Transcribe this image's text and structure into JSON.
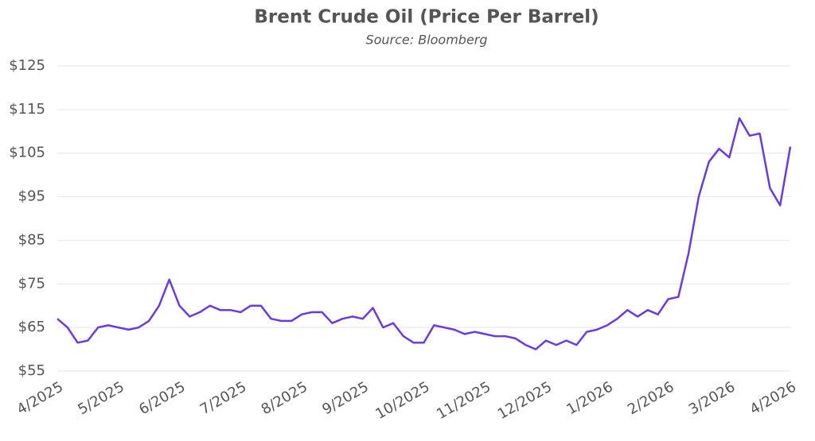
{
  "chart_data": {
    "type": "line",
    "title": "Brent Crude Oil (Price Per Barrel)",
    "subtitle": "Source: Bloomberg",
    "categories": [
      "4/2025",
      null,
      null,
      null,
      null,
      null,
      "5/2025",
      null,
      null,
      null,
      null,
      null,
      "6/2025",
      null,
      null,
      null,
      null,
      null,
      "7/2025",
      null,
      null,
      null,
      null,
      null,
      "8/2025",
      null,
      null,
      null,
      null,
      null,
      "9/2025",
      null,
      null,
      null,
      null,
      null,
      "10/2025",
      null,
      null,
      null,
      null,
      null,
      "11/2025",
      null,
      null,
      null,
      null,
      null,
      "12/2025",
      null,
      null,
      null,
      null,
      null,
      "1/2026",
      null,
      null,
      null,
      null,
      null,
      "2/2026",
      null,
      null,
      null,
      null,
      null,
      "3/2026",
      null,
      null,
      null,
      null,
      null,
      "4/2026"
    ],
    "values": [
      67,
      65,
      61.5,
      62,
      65,
      65.5,
      65,
      64.5,
      65,
      66.5,
      70,
      76,
      70,
      67.5,
      68.5,
      70,
      69,
      69,
      68.5,
      70,
      70,
      67,
      66.5,
      66.5,
      68,
      68.5,
      68.5,
      66,
      67,
      67.5,
      67,
      69.5,
      65,
      66,
      63,
      61.5,
      61.5,
      65.5,
      65,
      64.5,
      63.5,
      64,
      63.5,
      63,
      63,
      62.5,
      61,
      60,
      62,
      61,
      62,
      61,
      64,
      64.5,
      65.5,
      67,
      69,
      67.5,
      69,
      68,
      71.5,
      72,
      82,
      95,
      103,
      106,
      104,
      113,
      109,
      109.5,
      97,
      93,
      106.5
    ],
    "color": "#6a3be0",
    "ylim": [
      55,
      125
    ],
    "yticks": [
      {
        "value": 55,
        "label": "$55"
      },
      {
        "value": 65,
        "label": "$65"
      },
      {
        "value": 75,
        "label": "$75"
      },
      {
        "value": 85,
        "label": "$85"
      },
      {
        "value": 95,
        "label": "$95"
      },
      {
        "value": 105,
        "label": "$105"
      },
      {
        "value": 115,
        "label": "$115"
      },
      {
        "value": 125,
        "label": "$125"
      }
    ],
    "grid": true
  }
}
